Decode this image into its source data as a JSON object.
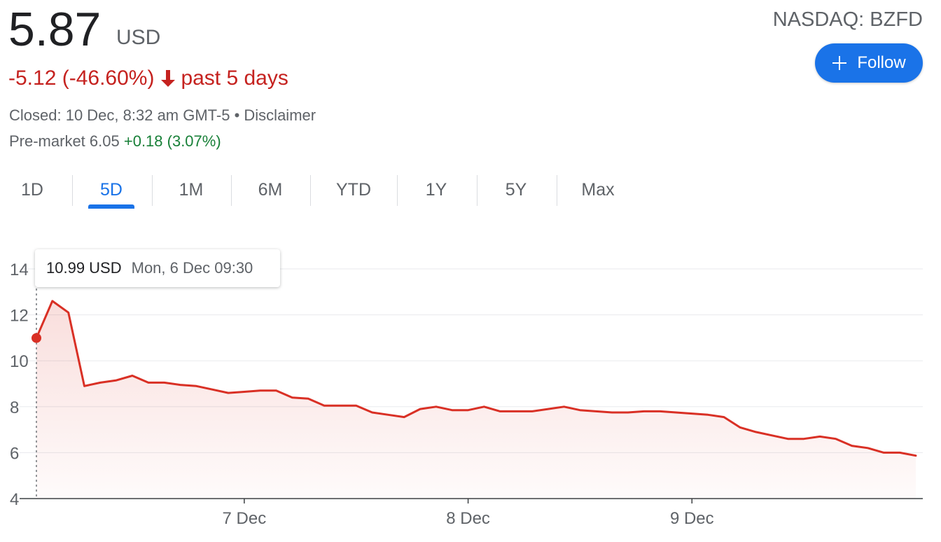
{
  "quote": {
    "price": "5.87",
    "currency": "USD",
    "ticker": "NASDAQ: BZFD",
    "change": "-5.12 (-46.60%)",
    "period": "past 5 days",
    "closed_text": "Closed: 10 Dec, 8:32 am GMT-5",
    "separator": " • ",
    "disclaimer": "Disclaimer",
    "premarket_label": "Pre-market 6.05",
    "premarket_change": "+0.18 (3.07%)"
  },
  "follow_button": {
    "label": "Follow",
    "icon": "plus-icon"
  },
  "change_icon": "arrow-down-icon",
  "tabs": [
    {
      "label": "1D",
      "active": false
    },
    {
      "label": "5D",
      "active": true
    },
    {
      "label": "1M",
      "active": false
    },
    {
      "label": "6M",
      "active": false
    },
    {
      "label": "YTD",
      "active": false
    },
    {
      "label": "1Y",
      "active": false
    },
    {
      "label": "5Y",
      "active": false
    },
    {
      "label": "Max",
      "active": false
    }
  ],
  "tooltip": {
    "price": "10.99 USD",
    "date": "Mon, 6 Dec 09:30"
  },
  "colors": {
    "line": "#d93025",
    "negative": "#c5221f",
    "positive": "#188038",
    "accent": "#1a73e8"
  },
  "chart_data": {
    "type": "area",
    "title": "",
    "xlabel": "",
    "ylabel": "",
    "ylim": [
      4,
      14
    ],
    "yticks": [
      4,
      6,
      8,
      10,
      12,
      14
    ],
    "xticks": [
      {
        "label": "7 Dec",
        "index": 13
      },
      {
        "label": "8 Dec",
        "index": 27
      },
      {
        "label": "9 Dec",
        "index": 41
      }
    ],
    "grid": true,
    "highlight_index": 0,
    "series": [
      {
        "values": [
          10.99,
          12.6,
          12.1,
          8.9,
          9.05,
          9.15,
          9.35,
          9.05,
          9.05,
          8.95,
          8.9,
          8.75,
          8.6,
          8.65,
          8.7,
          8.7,
          8.4,
          8.35,
          8.05,
          8.05,
          8.05,
          7.75,
          7.65,
          7.55,
          7.9,
          8.0,
          7.85,
          7.85,
          8.0,
          7.8,
          7.8,
          7.8,
          7.9,
          8.0,
          7.85,
          7.8,
          7.75,
          7.75,
          7.8,
          7.8,
          7.75,
          7.7,
          7.65,
          7.55,
          7.1,
          6.9,
          6.75,
          6.6,
          6.6,
          6.7,
          6.6,
          6.3,
          6.2,
          6.0,
          6.0,
          5.87
        ]
      }
    ]
  }
}
